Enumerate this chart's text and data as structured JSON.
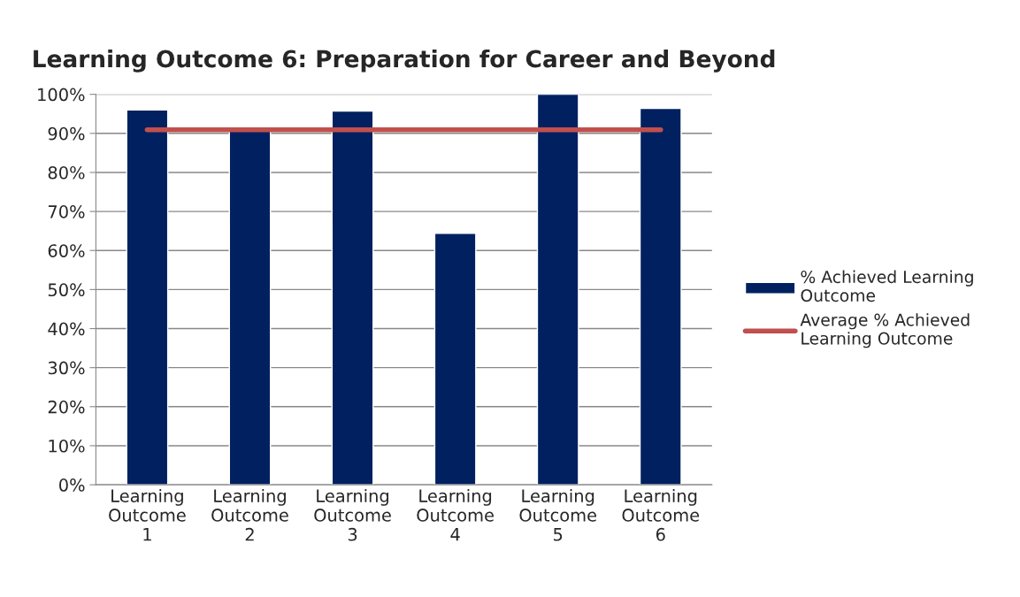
{
  "chart_data": {
    "type": "bar",
    "title": "Learning Outcome 6: Preparation for Career and Beyond",
    "categories": [
      "Learning Outcome 1",
      "Learning Outcome 2",
      "Learning Outcome 3",
      "Learning Outcome 4",
      "Learning Outcome 5",
      "Learning Outcome 6"
    ],
    "series": [
      {
        "name": "% Achieved Learning Outcome",
        "color": "#002060",
        "values": [
          96.0,
          91.0,
          95.7,
          64.4,
          100,
          96.4
        ]
      },
      {
        "name": "Average % Achieved Learning Outcome",
        "type": "line",
        "color": "#c0504d",
        "values": [
          90.9,
          90.9,
          90.9,
          90.9,
          90.9,
          90.9
        ]
      }
    ],
    "ylim": [
      0,
      100
    ],
    "yticks": [
      {
        "value": 0,
        "label": "0%"
      },
      {
        "value": 10,
        "label": "10%"
      },
      {
        "value": 20,
        "label": "20%"
      },
      {
        "value": 30,
        "label": "30%"
      },
      {
        "value": 40,
        "label": "40%"
      },
      {
        "value": 50,
        "label": "50%"
      },
      {
        "value": 60,
        "label": "60%"
      },
      {
        "value": 70,
        "label": "70%"
      },
      {
        "value": 80,
        "label": "80%"
      },
      {
        "value": 90,
        "label": "90%"
      },
      {
        "value": 100,
        "label": "100%"
      }
    ],
    "grid": "y",
    "legend": "right"
  }
}
